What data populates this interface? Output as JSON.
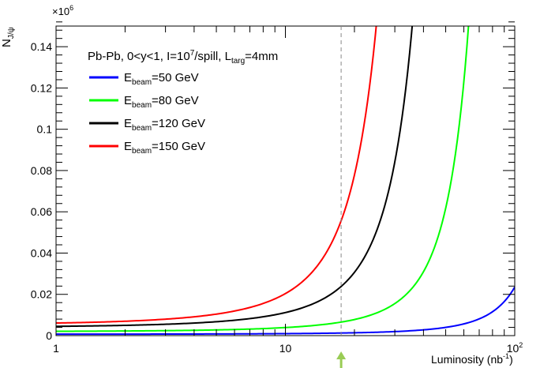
{
  "chart_data": {
    "type": "line",
    "title": "",
    "ylabel_main": "N",
    "ylabel_sub": "J/ψ",
    "y_multiplier_base": "×10",
    "y_multiplier_exp": "6",
    "xlabel_main": "Luminosity (nb",
    "xlabel_exp": "-1",
    "xlabel_close": ")",
    "x_scale": "log",
    "xlim": [
      1,
      100
    ],
    "ylim": [
      0,
      0.15
    ],
    "x_tick_labels": [
      {
        "value": 1,
        "base": "1",
        "exp": ""
      },
      {
        "value": 10,
        "base": "10",
        "exp": ""
      },
      {
        "value": 100,
        "base": "10",
        "exp": "2"
      }
    ],
    "y_tick_labels": [
      "0",
      "0.02",
      "0.04",
      "0.06",
      "0.08",
      "0.1",
      "0.12",
      "0.14"
    ],
    "y_tick_values": [
      0,
      0.02,
      0.04,
      0.06,
      0.08,
      0.1,
      0.12,
      0.14
    ],
    "legend_header": {
      "pre": "Pb-Pb, 0<y<1, I=10",
      "exp": "7",
      "mid": "/spill, L",
      "sub": "targ",
      "post": "=4mm"
    },
    "legend_placement": "top-left",
    "grid": false,
    "series": [
      {
        "name_main": "E",
        "name_sub": "beam",
        "name_post": "=50 GeV",
        "color": "#0000ff",
        "x0": 1,
        "y0": 0.0007,
        "growth": 0.0355
      },
      {
        "name_main": "E",
        "name_sub": "beam",
        "name_post": "=80 GeV",
        "color": "#00ff00",
        "x0": 1,
        "y0": 0.0021,
        "growth": 0.069
      },
      {
        "name_main": "E",
        "name_sub": "beam",
        "name_post": "=120 GeV",
        "color": "#000000",
        "x0": 1,
        "y0": 0.0045,
        "growth": 0.101
      },
      {
        "name_main": "E",
        "name_sub": "beam",
        "name_post": "=150 GeV",
        "color": "#ff0000",
        "x0": 1,
        "y0": 0.0061,
        "growth": 0.134
      }
    ],
    "reference_line": {
      "x": 17.5,
      "style": "dashed",
      "color": "#888888"
    },
    "marker_arrow": {
      "x": 17.5,
      "color": "#99cc55"
    }
  }
}
